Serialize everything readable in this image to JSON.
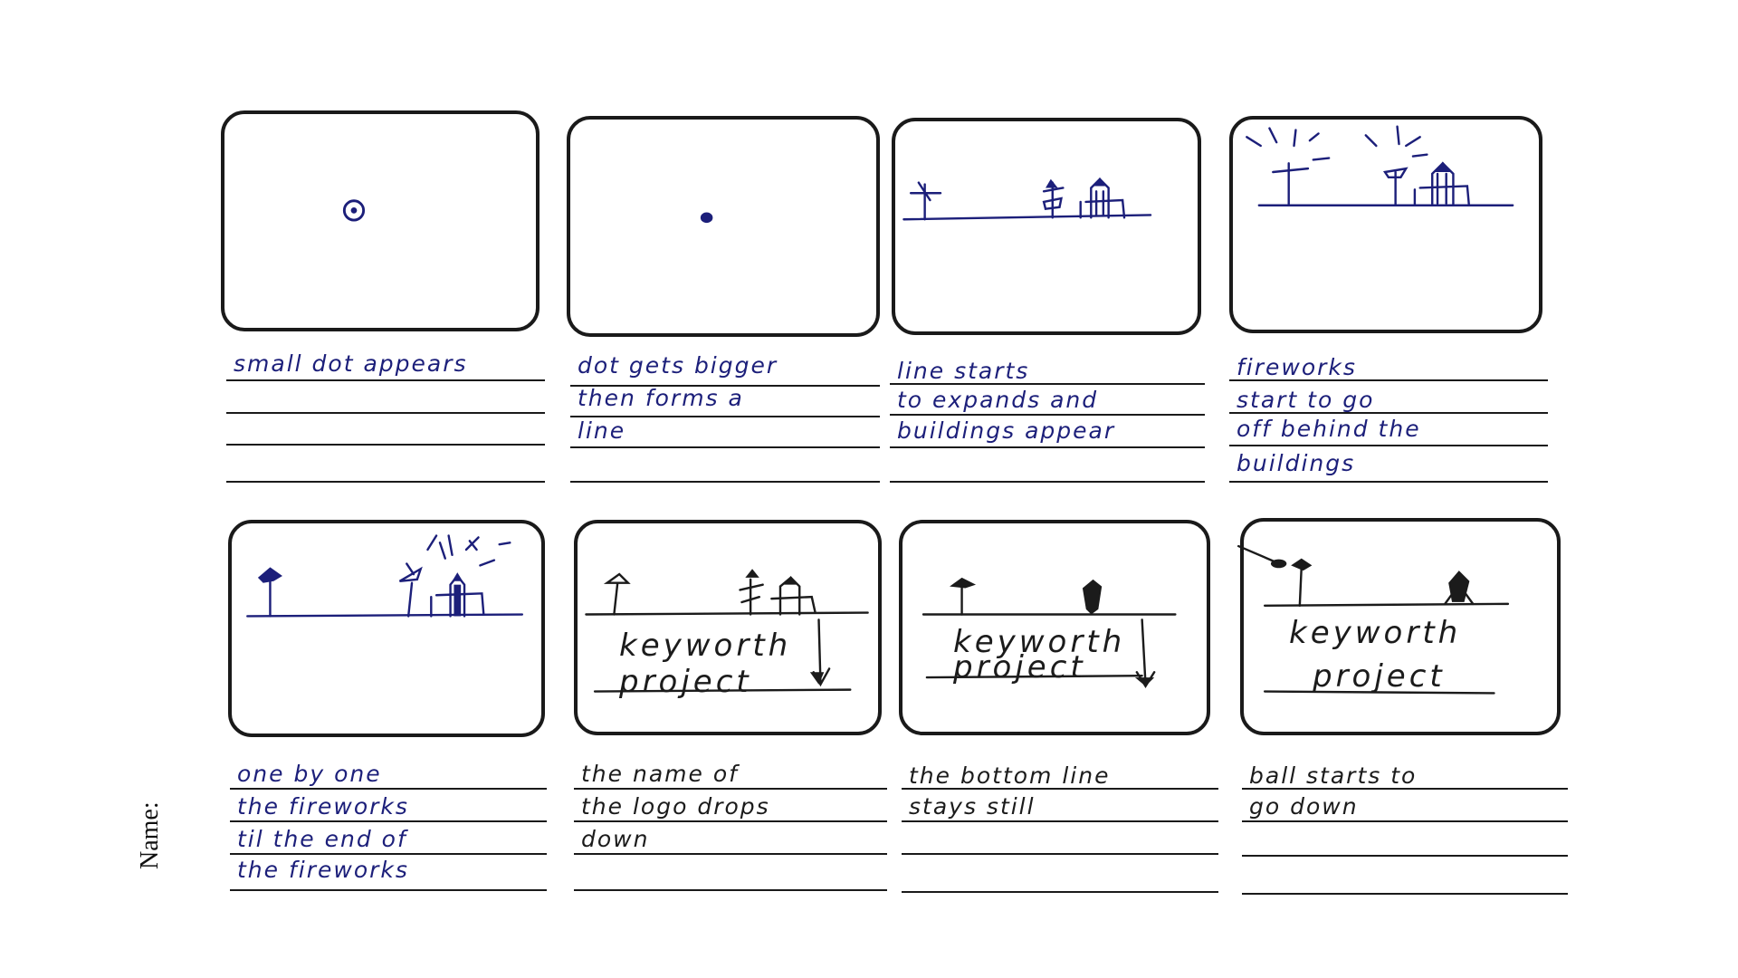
{
  "header": {
    "name_label": "Name:"
  },
  "panels": [
    {
      "caption_lines": [
        "small dot appears",
        "",
        "",
        ""
      ]
    },
    {
      "caption_lines": [
        "dot gets bigger",
        "then forms a",
        "line",
        ""
      ]
    },
    {
      "caption_lines": [
        "line starts",
        "to expands and",
        "buildings appear",
        ""
      ]
    },
    {
      "caption_lines": [
        "fireworks",
        "start to go",
        "off behind the",
        "buildings"
      ]
    },
    {
      "caption_lines": [
        "one by one",
        "the fireworks",
        "til the end of",
        "the fireworks"
      ]
    },
    {
      "caption_lines": [
        "the name of",
        "the logo drops",
        "down",
        ""
      ],
      "logo_lines": [
        "keyworth",
        "project"
      ]
    },
    {
      "caption_lines": [
        "the bottom line",
        "stays still",
        "",
        ""
      ],
      "logo_lines": [
        "keyworth",
        "project"
      ]
    },
    {
      "caption_lines": [
        "ball starts to",
        "go down",
        "",
        ""
      ],
      "logo_lines": [
        "keyworth",
        "project"
      ]
    }
  ],
  "colors": {
    "ink_blue": "#1c1f7a",
    "ink_pencil": "#1b1b1b",
    "frame_border": "#1a1a1a"
  }
}
